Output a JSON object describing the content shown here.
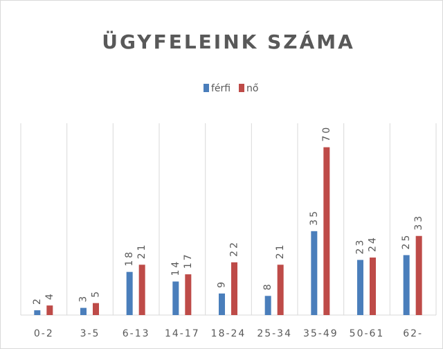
{
  "chart_data": {
    "type": "bar",
    "title": "ÜGYFELEINK SZÁMA",
    "categories": [
      "0-2",
      "3-5",
      "6-13",
      "14-17",
      "18-24",
      "25-34",
      "35-49",
      "50-61",
      "62-"
    ],
    "series": [
      {
        "name": "férfi",
        "color": "#4a7ebb",
        "values": [
          2,
          3,
          18,
          14,
          9,
          8,
          35,
          23,
          25
        ]
      },
      {
        "name": "nő",
        "color": "#be4b48",
        "values": [
          4,
          5,
          21,
          17,
          22,
          21,
          70,
          24,
          33
        ]
      }
    ],
    "ylim": [
      0,
      80
    ],
    "grid": true
  }
}
